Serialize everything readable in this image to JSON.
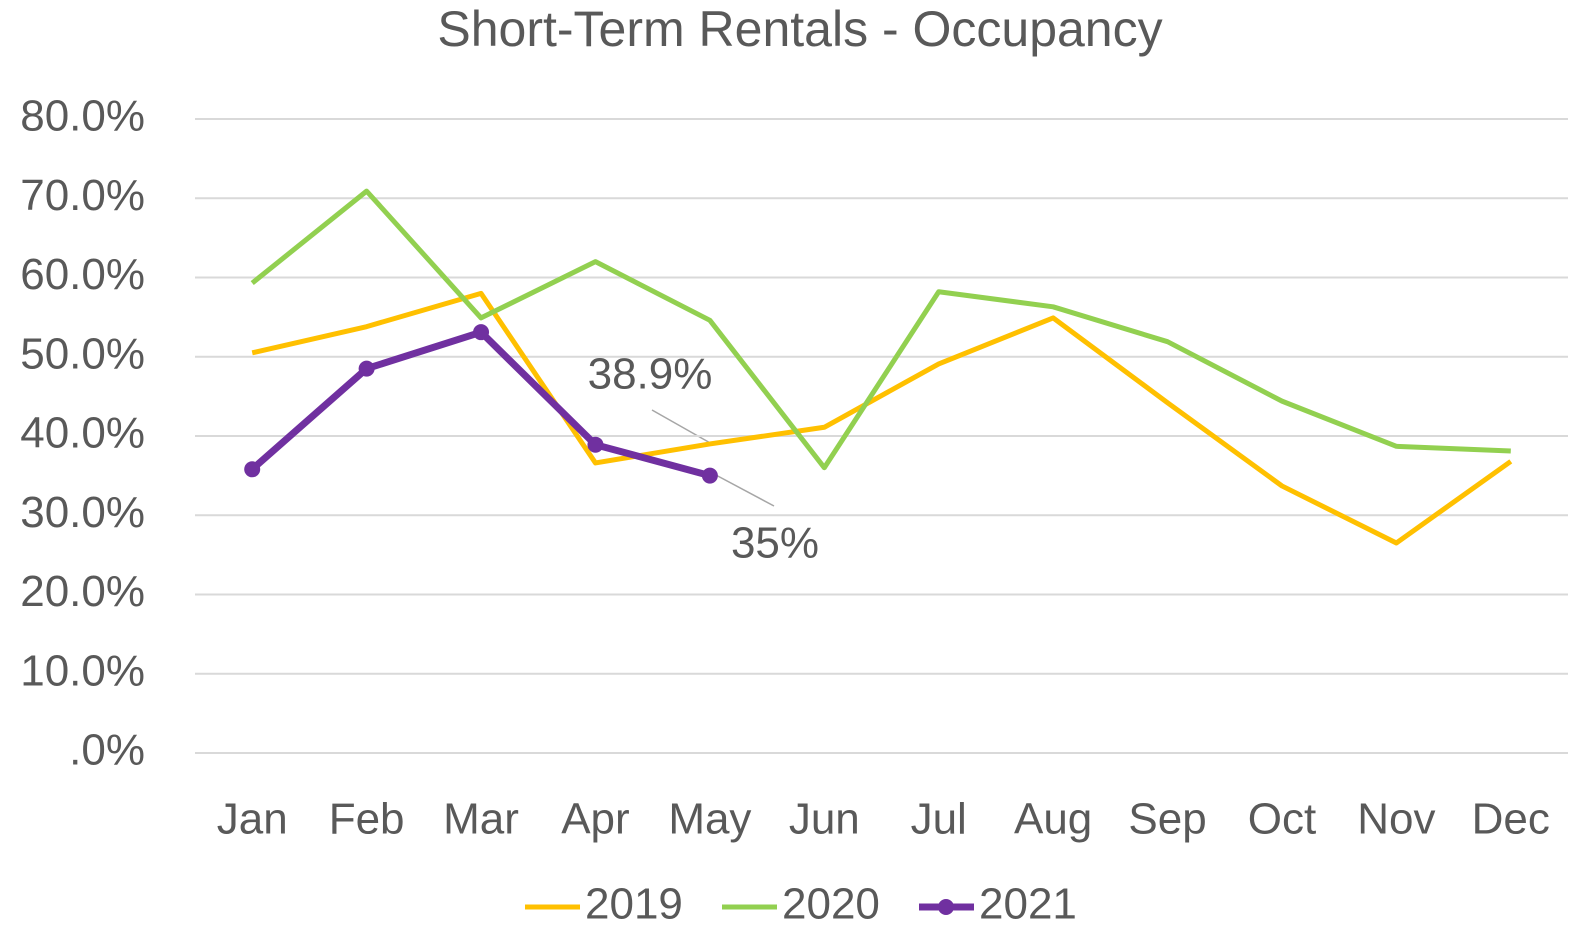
{
  "chart_data": {
    "type": "line",
    "title": "Short-Term Rentals - Occupancy",
    "categories": [
      "Jan",
      "Feb",
      "Mar",
      "Apr",
      "May",
      "Jun",
      "Jul",
      "Aug",
      "Sep",
      "Oct",
      "Nov",
      "Dec"
    ],
    "series": [
      {
        "name": "2019",
        "color": "#ffc000",
        "values": [
          50.5,
          53.8,
          58.0,
          36.6,
          39.0,
          41.1,
          49.1,
          54.9,
          44.2,
          33.7,
          26.5,
          36.8
        ]
      },
      {
        "name": "2020",
        "color": "#92d050",
        "values": [
          59.3,
          70.9,
          54.9,
          62.0,
          54.6,
          36.0,
          58.2,
          56.3,
          51.9,
          44.4,
          38.7,
          38.1
        ]
      },
      {
        "name": "2021",
        "color": "#7030a0",
        "markers": true,
        "values": [
          35.8,
          48.5,
          53.1,
          38.9,
          35,
          null,
          null,
          null,
          null,
          null,
          null,
          null
        ],
        "value_labels": [
          null,
          null,
          null,
          "38.9%",
          "35%",
          null,
          null,
          null,
          null,
          null,
          null,
          null
        ]
      }
    ],
    "ylim": [
      0,
      80
    ],
    "yticks": [
      {
        "value": 0,
        "label": ".0%"
      },
      {
        "value": 10,
        "label": "10.0%"
      },
      {
        "value": 20,
        "label": "20.0%"
      },
      {
        "value": 30,
        "label": "30.0%"
      },
      {
        "value": 40,
        "label": "40.0%"
      },
      {
        "value": 50,
        "label": "50.0%"
      },
      {
        "value": 60,
        "label": "60.0%"
      },
      {
        "value": 70,
        "label": "70.0%"
      },
      {
        "value": 80,
        "label": "80.0%"
      }
    ],
    "grid": true,
    "legend": "bottom"
  }
}
